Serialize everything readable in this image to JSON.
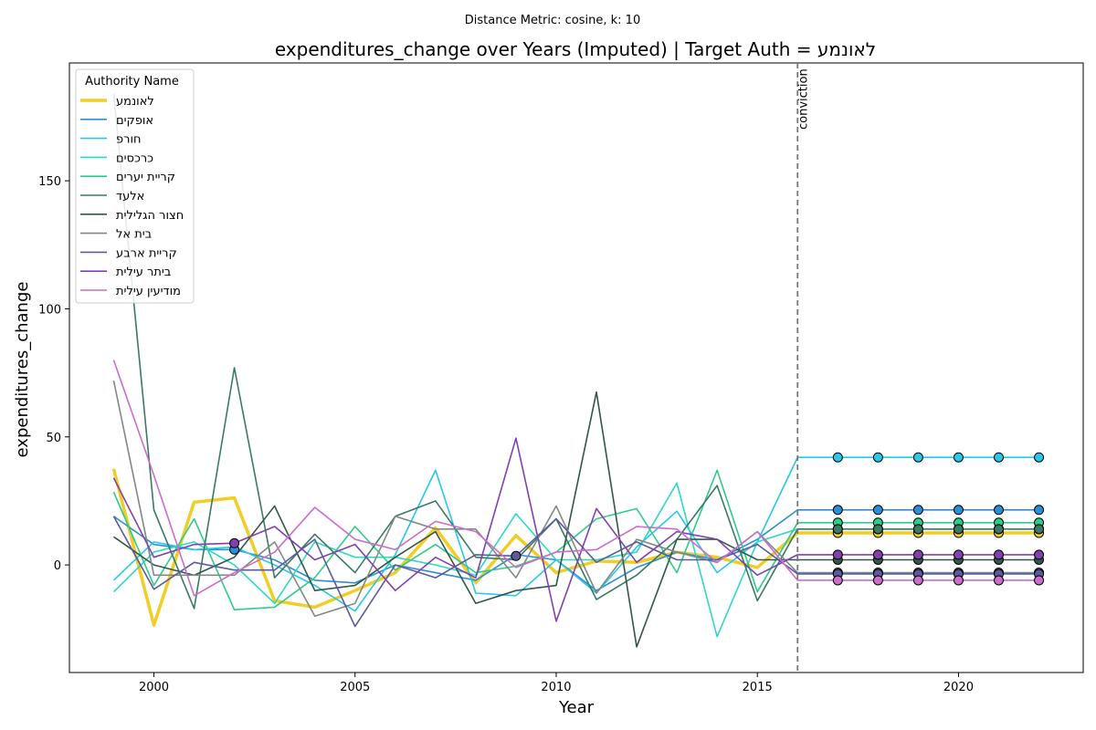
{
  "chart_data": {
    "type": "line",
    "suptitle": "Distance Metric: cosine, k: 10",
    "title": "expenditures_change over Years (Imputed) | Target Auth = לאונמע",
    "xlabel": "Year",
    "ylabel": "expenditures_change",
    "xlim": [
      1997.9,
      2023.1
    ],
    "ylim": [
      -42,
      196
    ],
    "xticks": [
      2000,
      2005,
      2010,
      2015,
      2020
    ],
    "yticks": [
      0,
      50,
      100,
      150
    ],
    "grid": false,
    "legend": {
      "title": "Authority Name",
      "placement": "top-left"
    },
    "vline": {
      "x": 2016,
      "label": "conviction",
      "color": "#777777"
    },
    "imputed_years": [
      2017,
      2018,
      2019,
      2020,
      2021,
      2022
    ],
    "x": [
      1999,
      2000,
      2001,
      2002,
      2003,
      2004,
      2005,
      2006,
      2007,
      2008,
      2009,
      2010,
      2011,
      2012,
      2013,
      2014,
      2015,
      2016,
      2017,
      2018,
      2019,
      2020,
      2021,
      2022
    ],
    "series": [
      {
        "name": "לאונמע",
        "color": "#f2cd24",
        "target": true,
        "values": [
          37.5,
          -23.5,
          24.5,
          26.2,
          -14,
          -16.5,
          -10,
          -3,
          14.5,
          -7,
          11.5,
          -3,
          1.5,
          1,
          5,
          3,
          -1,
          12.5,
          12.5,
          12.5,
          12.5,
          12.5,
          12.5,
          12.5
        ],
        "imputed": [
          false,
          false,
          false,
          false,
          false,
          false,
          false,
          false,
          false,
          false,
          false,
          false,
          false,
          false,
          false,
          false,
          false,
          false,
          true,
          true,
          true,
          true,
          true,
          true
        ]
      },
      {
        "name": "אופקים",
        "color": "#2a8fd8",
        "values": [
          19,
          8,
          6,
          6,
          2,
          -6,
          -7,
          0,
          -3,
          -6,
          4,
          2,
          -10,
          -1,
          5,
          2,
          10,
          21.5,
          21.5,
          21.5,
          21.5,
          21.5,
          21.5,
          21.5
        ],
        "imputed": [
          false,
          false,
          false,
          true,
          false,
          false,
          false,
          false,
          false,
          false,
          false,
          false,
          false,
          false,
          false,
          false,
          false,
          false,
          true,
          true,
          true,
          true,
          true,
          true
        ]
      },
      {
        "name": "חורפ",
        "color": "#26c8ec",
        "values": [
          -6,
          9,
          6,
          7,
          0,
          -8,
          -18,
          4,
          37,
          -11,
          -12,
          2,
          -11,
          7,
          21,
          -3,
          9,
          42,
          42,
          42,
          42,
          42,
          42,
          42
        ],
        "imputed": [
          false,
          false,
          false,
          false,
          false,
          false,
          false,
          false,
          false,
          false,
          false,
          false,
          false,
          false,
          false,
          false,
          false,
          false,
          true,
          true,
          true,
          true,
          true,
          true
        ]
      },
      {
        "name": "כרכסים",
        "color": "#2ed9c3",
        "values": [
          -10.5,
          5,
          9,
          0,
          -15,
          9,
          3,
          3,
          0,
          -4,
          20,
          2,
          2,
          5,
          32,
          -28,
          9,
          14,
          14,
          14,
          14,
          14,
          14,
          14
        ],
        "imputed": [
          false,
          false,
          false,
          false,
          false,
          false,
          false,
          false,
          false,
          false,
          false,
          false,
          false,
          false,
          false,
          false,
          false,
          false,
          true,
          true,
          true,
          true,
          true,
          true
        ]
      },
      {
        "name": "קריית יערים",
        "color": "#2ecc8a",
        "values": [
          28.5,
          -8,
          18,
          -17.5,
          -16.5,
          -5,
          15,
          -2,
          8,
          -3,
          -0.5,
          5,
          18,
          22,
          -3,
          37,
          -10.5,
          16.5,
          16.5,
          16.5,
          16.5,
          16.5,
          16.5,
          16.5
        ],
        "imputed": [
          false,
          false,
          false,
          false,
          false,
          false,
          false,
          false,
          false,
          false,
          false,
          false,
          false,
          false,
          false,
          false,
          false,
          false,
          true,
          true,
          true,
          true,
          true,
          true
        ]
      },
      {
        "name": "אלעד",
        "color": "#3a7a63",
        "values": [
          184,
          21.5,
          -17,
          77,
          -5,
          12,
          -3,
          19,
          25,
          3,
          2,
          18,
          -13.5,
          -4,
          10,
          31,
          -14,
          14,
          14,
          14,
          14,
          14,
          14,
          14
        ],
        "imputed": [
          false,
          false,
          false,
          false,
          false,
          false,
          false,
          false,
          false,
          false,
          false,
          false,
          false,
          false,
          false,
          false,
          false,
          false,
          true,
          true,
          true,
          true,
          true,
          true
        ]
      },
      {
        "name": "חצור הגלילית",
        "color": "#33564a",
        "values": [
          11,
          0,
          -4,
          3,
          23,
          -10,
          -8,
          3,
          13,
          -15,
          -10,
          -8,
          67.5,
          -32,
          10,
          10,
          2,
          2,
          2,
          2,
          2,
          2,
          2,
          2
        ],
        "imputed": [
          false,
          false,
          false,
          false,
          false,
          false,
          false,
          false,
          false,
          false,
          false,
          false,
          false,
          false,
          false,
          false,
          false,
          false,
          true,
          true,
          true,
          true,
          true,
          true
        ]
      },
      {
        "name": "בית אל",
        "color": "#7f8a86",
        "values": [
          72,
          -4,
          -4,
          -4,
          9,
          -20,
          -15,
          19,
          14,
          14,
          -5,
          23,
          -11,
          10,
          5,
          1,
          13,
          -3,
          -3,
          -3,
          -3,
          -3,
          -3,
          -3
        ],
        "imputed": [
          false,
          false,
          false,
          false,
          false,
          false,
          false,
          false,
          false,
          false,
          false,
          false,
          false,
          false,
          false,
          false,
          false,
          false,
          true,
          true,
          true,
          true,
          true,
          true
        ]
      },
      {
        "name": "קריית ארבע",
        "color": "#5a5b9e",
        "values": [
          19,
          -9.5,
          1,
          -2,
          -2,
          10,
          -24,
          0,
          -5,
          4,
          3.5,
          18,
          1,
          9,
          2,
          2,
          8,
          -3.5,
          -3.5,
          -3.5,
          -3.5,
          -3.5,
          -3.5,
          -3.5
        ],
        "imputed": [
          false,
          false,
          false,
          false,
          false,
          false,
          false,
          false,
          false,
          false,
          true,
          false,
          false,
          false,
          false,
          false,
          false,
          false,
          true,
          true,
          true,
          true,
          true,
          true
        ]
      },
      {
        "name": "ביתר עילית",
        "color": "#8040b0",
        "values": [
          34,
          3,
          8,
          8.5,
          15,
          2,
          8,
          -10,
          3,
          -5,
          49.5,
          -22,
          22,
          1,
          13,
          10,
          -4,
          4,
          4,
          4,
          4,
          4,
          4,
          4
        ],
        "imputed": [
          false,
          false,
          false,
          true,
          false,
          false,
          false,
          false,
          false,
          false,
          false,
          false,
          false,
          false,
          false,
          false,
          false,
          false,
          true,
          true,
          true,
          true,
          true,
          true
        ]
      },
      {
        "name": "מודיעין עילית",
        "color": "#cc6ccc",
        "values": [
          80,
          35,
          -12,
          -3,
          5,
          22.5,
          10,
          6,
          17,
          13,
          -1,
          5,
          6,
          15,
          14,
          1,
          13,
          -6,
          -6,
          -6,
          -6,
          -6,
          -6,
          -6
        ],
        "imputed": [
          false,
          false,
          false,
          false,
          false,
          false,
          false,
          false,
          false,
          false,
          false,
          false,
          false,
          false,
          false,
          false,
          false,
          false,
          true,
          true,
          true,
          true,
          true,
          true
        ]
      }
    ]
  }
}
